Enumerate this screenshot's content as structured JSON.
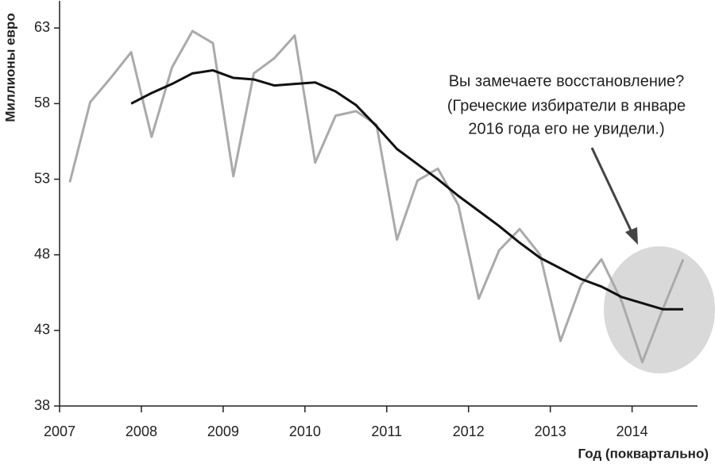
{
  "chart_data": {
    "type": "line",
    "y_label": "Миллионы евро",
    "x_label": "Год (поквартально)",
    "annotation": [
      "Вы замечаете восстановление?",
      "(Греческие избиратели в январе",
      "2016 года его не увидели.)"
    ],
    "x": [
      2007.125,
      2007.375,
      2007.625,
      2007.875,
      2008.125,
      2008.375,
      2008.625,
      2008.875,
      2009.125,
      2009.375,
      2009.625,
      2009.875,
      2010.125,
      2010.375,
      2010.625,
      2010.875,
      2011.125,
      2011.375,
      2011.625,
      2011.875,
      2012.125,
      2012.375,
      2012.625,
      2012.875,
      2013.125,
      2013.375,
      2013.625,
      2013.875,
      2014.125,
      2014.375,
      2014.625
    ],
    "series": [
      {
        "color": "#aaaaaa",
        "values": [
          52.8,
          58.1,
          59.7,
          61.4,
          55.8,
          60.4,
          62.8,
          62.0,
          53.2,
          60.0,
          61.0,
          62.5,
          54.1,
          57.2,
          57.5,
          56.6,
          49.0,
          52.9,
          53.7,
          51.3,
          45.1,
          48.3,
          49.7,
          48.0,
          42.3,
          46.0,
          47.7,
          44.9,
          40.9,
          44.4,
          47.7
        ]
      },
      {
        "color": "#111111",
        "values": [
          null,
          null,
          null,
          58.0,
          58.7,
          59.3,
          60.0,
          60.2,
          59.7,
          59.6,
          59.2,
          59.3,
          59.4,
          58.8,
          57.9,
          56.5,
          55.0,
          54.0,
          53.0,
          51.9,
          50.9,
          49.9,
          48.8,
          47.8,
          47.1,
          46.4,
          45.9,
          45.2,
          44.8,
          44.4,
          44.4
        ]
      }
    ],
    "xlim": [
      2007,
      2014.8
    ],
    "xticks": [
      2007,
      2008,
      2009,
      2010,
      2011,
      2012,
      2013,
      2014
    ],
    "ylim": [
      38,
      64.8
    ],
    "yticks": [
      38,
      43,
      48,
      53,
      58,
      63
    ]
  }
}
